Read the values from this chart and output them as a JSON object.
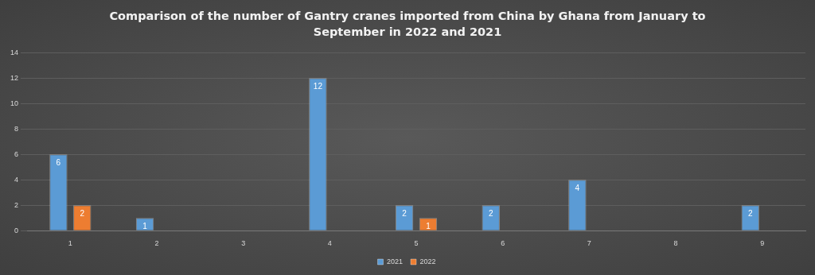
{
  "chart_data": {
    "type": "bar",
    "title": "Comparison of the number of Gantry cranes imported from China by Ghana from January to September in 2022 and 2021",
    "categories": [
      "1",
      "2",
      "3",
      "4",
      "5",
      "6",
      "7",
      "8",
      "9"
    ],
    "series": [
      {
        "name": "2021",
        "color": "#5b9bd5",
        "values": [
          6,
          1,
          null,
          12,
          2,
          2,
          4,
          null,
          2
        ]
      },
      {
        "name": "2022",
        "color": "#ed7d31",
        "values": [
          2,
          null,
          null,
          null,
          1,
          null,
          null,
          null,
          null
        ]
      }
    ],
    "ylim": [
      0,
      14
    ],
    "yticks": [
      0,
      2,
      4,
      6,
      8,
      10,
      12,
      14
    ],
    "grid": "y",
    "legend": "bottom",
    "data_labels": true
  }
}
